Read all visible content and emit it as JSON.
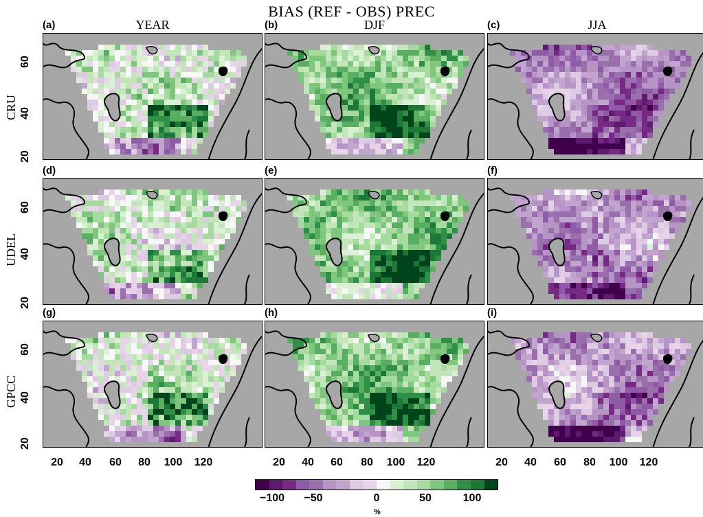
{
  "title": "BIAS (REF - OBS) PREC",
  "columns": [
    "YEAR",
    "DJF",
    "JJA"
  ],
  "rows": [
    "CRU",
    "UDEL",
    "GPCC"
  ],
  "panel_labels": [
    "(a)",
    "(b)",
    "(c)",
    "(d)",
    "(e)",
    "(f)",
    "(g)",
    "(h)",
    "(i)"
  ],
  "y_ticks": [
    "20",
    "40",
    "60"
  ],
  "x_ticks": [
    "20",
    "40",
    "60",
    "80",
    "100",
    "120"
  ],
  "colorbar": {
    "ticks": [
      "−100",
      "−50",
      "0",
      "50",
      "100"
    ],
    "unit": "%",
    "colors": [
      "#40004b",
      "#5e1a6e",
      "#762a83",
      "#8f5ba6",
      "#9970ab",
      "#b695c6",
      "#c2a5cf",
      "#dccbe3",
      "#e7d4e8",
      "#f7f7f7",
      "#d9f0d3",
      "#c2e6b9",
      "#a6dba0",
      "#7fc77e",
      "#5aae61",
      "#2f8f46",
      "#1b7837",
      "#00441b"
    ]
  },
  "colors": {
    "land_background": "#a7a7a7",
    "coast_line": "#000000",
    "dark_purple": "#40004b",
    "dark_green": "#00441b"
  }
}
